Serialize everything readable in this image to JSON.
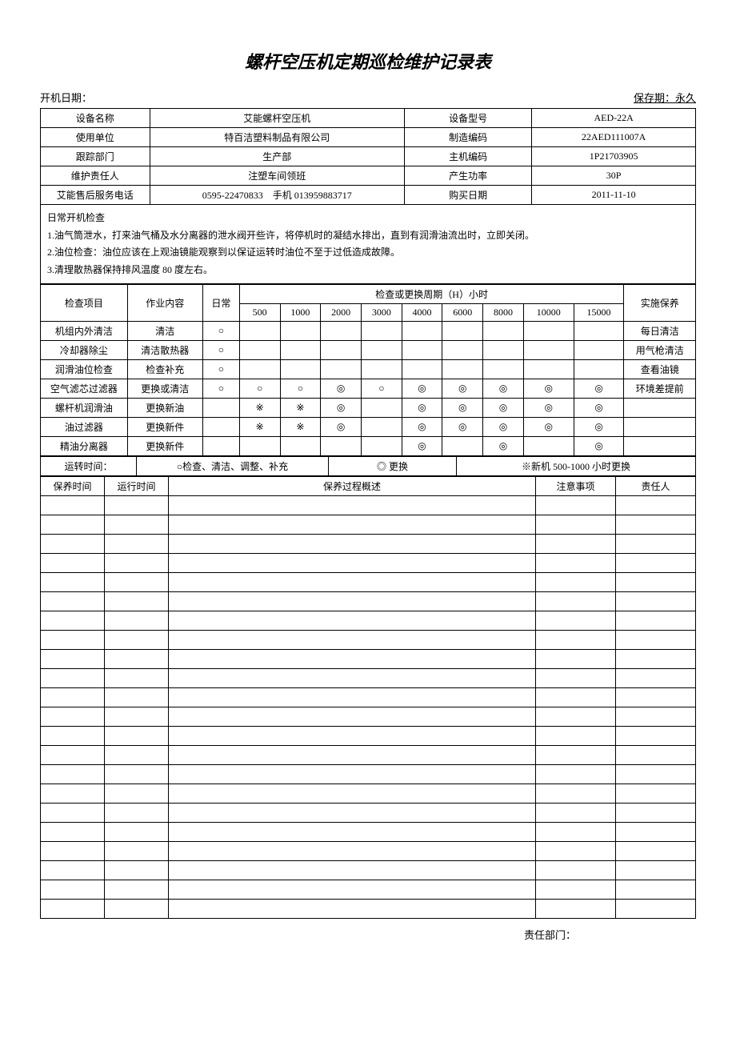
{
  "title": "螺杆空压机定期巡检维护记录表",
  "header": {
    "start_date_label": "开机日期：",
    "retain_label": "保存期：永久"
  },
  "info": {
    "row1": {
      "l1": "设备名称",
      "v1": "艾能螺杆空压机",
      "l2": "设备型号",
      "v2": "AED-22A"
    },
    "row2": {
      "l1": "使用单位",
      "v1": "特百洁塑料制品有限公司",
      "l2": "制造编码",
      "v2": "22AED111007A"
    },
    "row3": {
      "l1": "跟踪部门",
      "v1": "生产部",
      "l2": "主机编码",
      "v2": "1P21703905"
    },
    "row4": {
      "l1": "维护责任人",
      "v1": "注塑车间领班",
      "l2": "产生功率",
      "v2": "30P"
    },
    "row5": {
      "l1": "艾能售后服务电话",
      "v1": "0595-22470833　手机 013959883717",
      "l2": "购买日期",
      "v2": "2011-11-10"
    }
  },
  "daily_check": {
    "heading": "日常开机检查",
    "line1": "1.油气筒泄水，打来油气桶及水分离器的泄水阀开些许，将停机时的凝结水排出，直到有润滑油流出时，立即关闭。",
    "line2": "2.油位检查：油位应该在上观油镜能观察到以保证运转时油位不至于过低造成故障。",
    "line3": "3.清理散热器保持排风温度 80 度左右。"
  },
  "schedule": {
    "header": {
      "item": "检查项目",
      "work": "作业内容",
      "daily": "日常",
      "period": "检查或更换周期（H）小时",
      "exec": "实施保养",
      "intervals": [
        "500",
        "1000",
        "2000",
        "3000",
        "4000",
        "6000",
        "8000",
        "10000",
        "15000"
      ]
    },
    "rows": [
      {
        "item": "机组内外清洁",
        "work": "清洁",
        "daily": "○",
        "marks": [
          "",
          "",
          "",
          "",
          "",
          "",
          "",
          "",
          ""
        ],
        "exec": "每日清洁"
      },
      {
        "item": "冷却器除尘",
        "work": "清洁散热器",
        "daily": "○",
        "marks": [
          "",
          "",
          "",
          "",
          "",
          "",
          "",
          "",
          ""
        ],
        "exec": "用气枪清洁"
      },
      {
        "item": "润滑油位检查",
        "work": "检查补充",
        "daily": "○",
        "marks": [
          "",
          "",
          "",
          "",
          "",
          "",
          "",
          "",
          ""
        ],
        "exec": "查看油镜"
      },
      {
        "item": "空气滤芯过滤器",
        "work": "更换或清洁",
        "daily": "○",
        "marks": [
          "○",
          "○",
          "◎",
          "○",
          "◎",
          "◎",
          "◎",
          "◎",
          "◎"
        ],
        "exec": "环境差提前"
      },
      {
        "item": "螺杆机润滑油",
        "work": "更换新油",
        "daily": "",
        "marks": [
          "※",
          "※",
          "◎",
          "",
          "◎",
          "◎",
          "◎",
          "◎",
          "◎"
        ],
        "exec": ""
      },
      {
        "item": "油过滤器",
        "work": "更换新件",
        "daily": "",
        "marks": [
          "※",
          "※",
          "◎",
          "",
          "◎",
          "◎",
          "◎",
          "◎",
          "◎"
        ],
        "exec": ""
      },
      {
        "item": "精油分离器",
        "work": "更换新件",
        "daily": "",
        "marks": [
          "",
          "",
          "",
          "",
          "◎",
          "",
          "◎",
          "",
          "◎"
        ],
        "exec": ""
      }
    ],
    "legend": {
      "time_label": "运转时间：",
      "check": "○检查、清洁、调整、补充",
      "replace": "◎ 更换",
      "newmachine": "※新机 500-1000 小时更换"
    }
  },
  "log": {
    "header": {
      "maint_time": "保养时间",
      "run_time": "运行时间",
      "process": "保养过程概述",
      "attention": "注意事项",
      "person": "责任人"
    },
    "empty_rows": 22
  },
  "footer": {
    "dept_label": "责任部门："
  }
}
